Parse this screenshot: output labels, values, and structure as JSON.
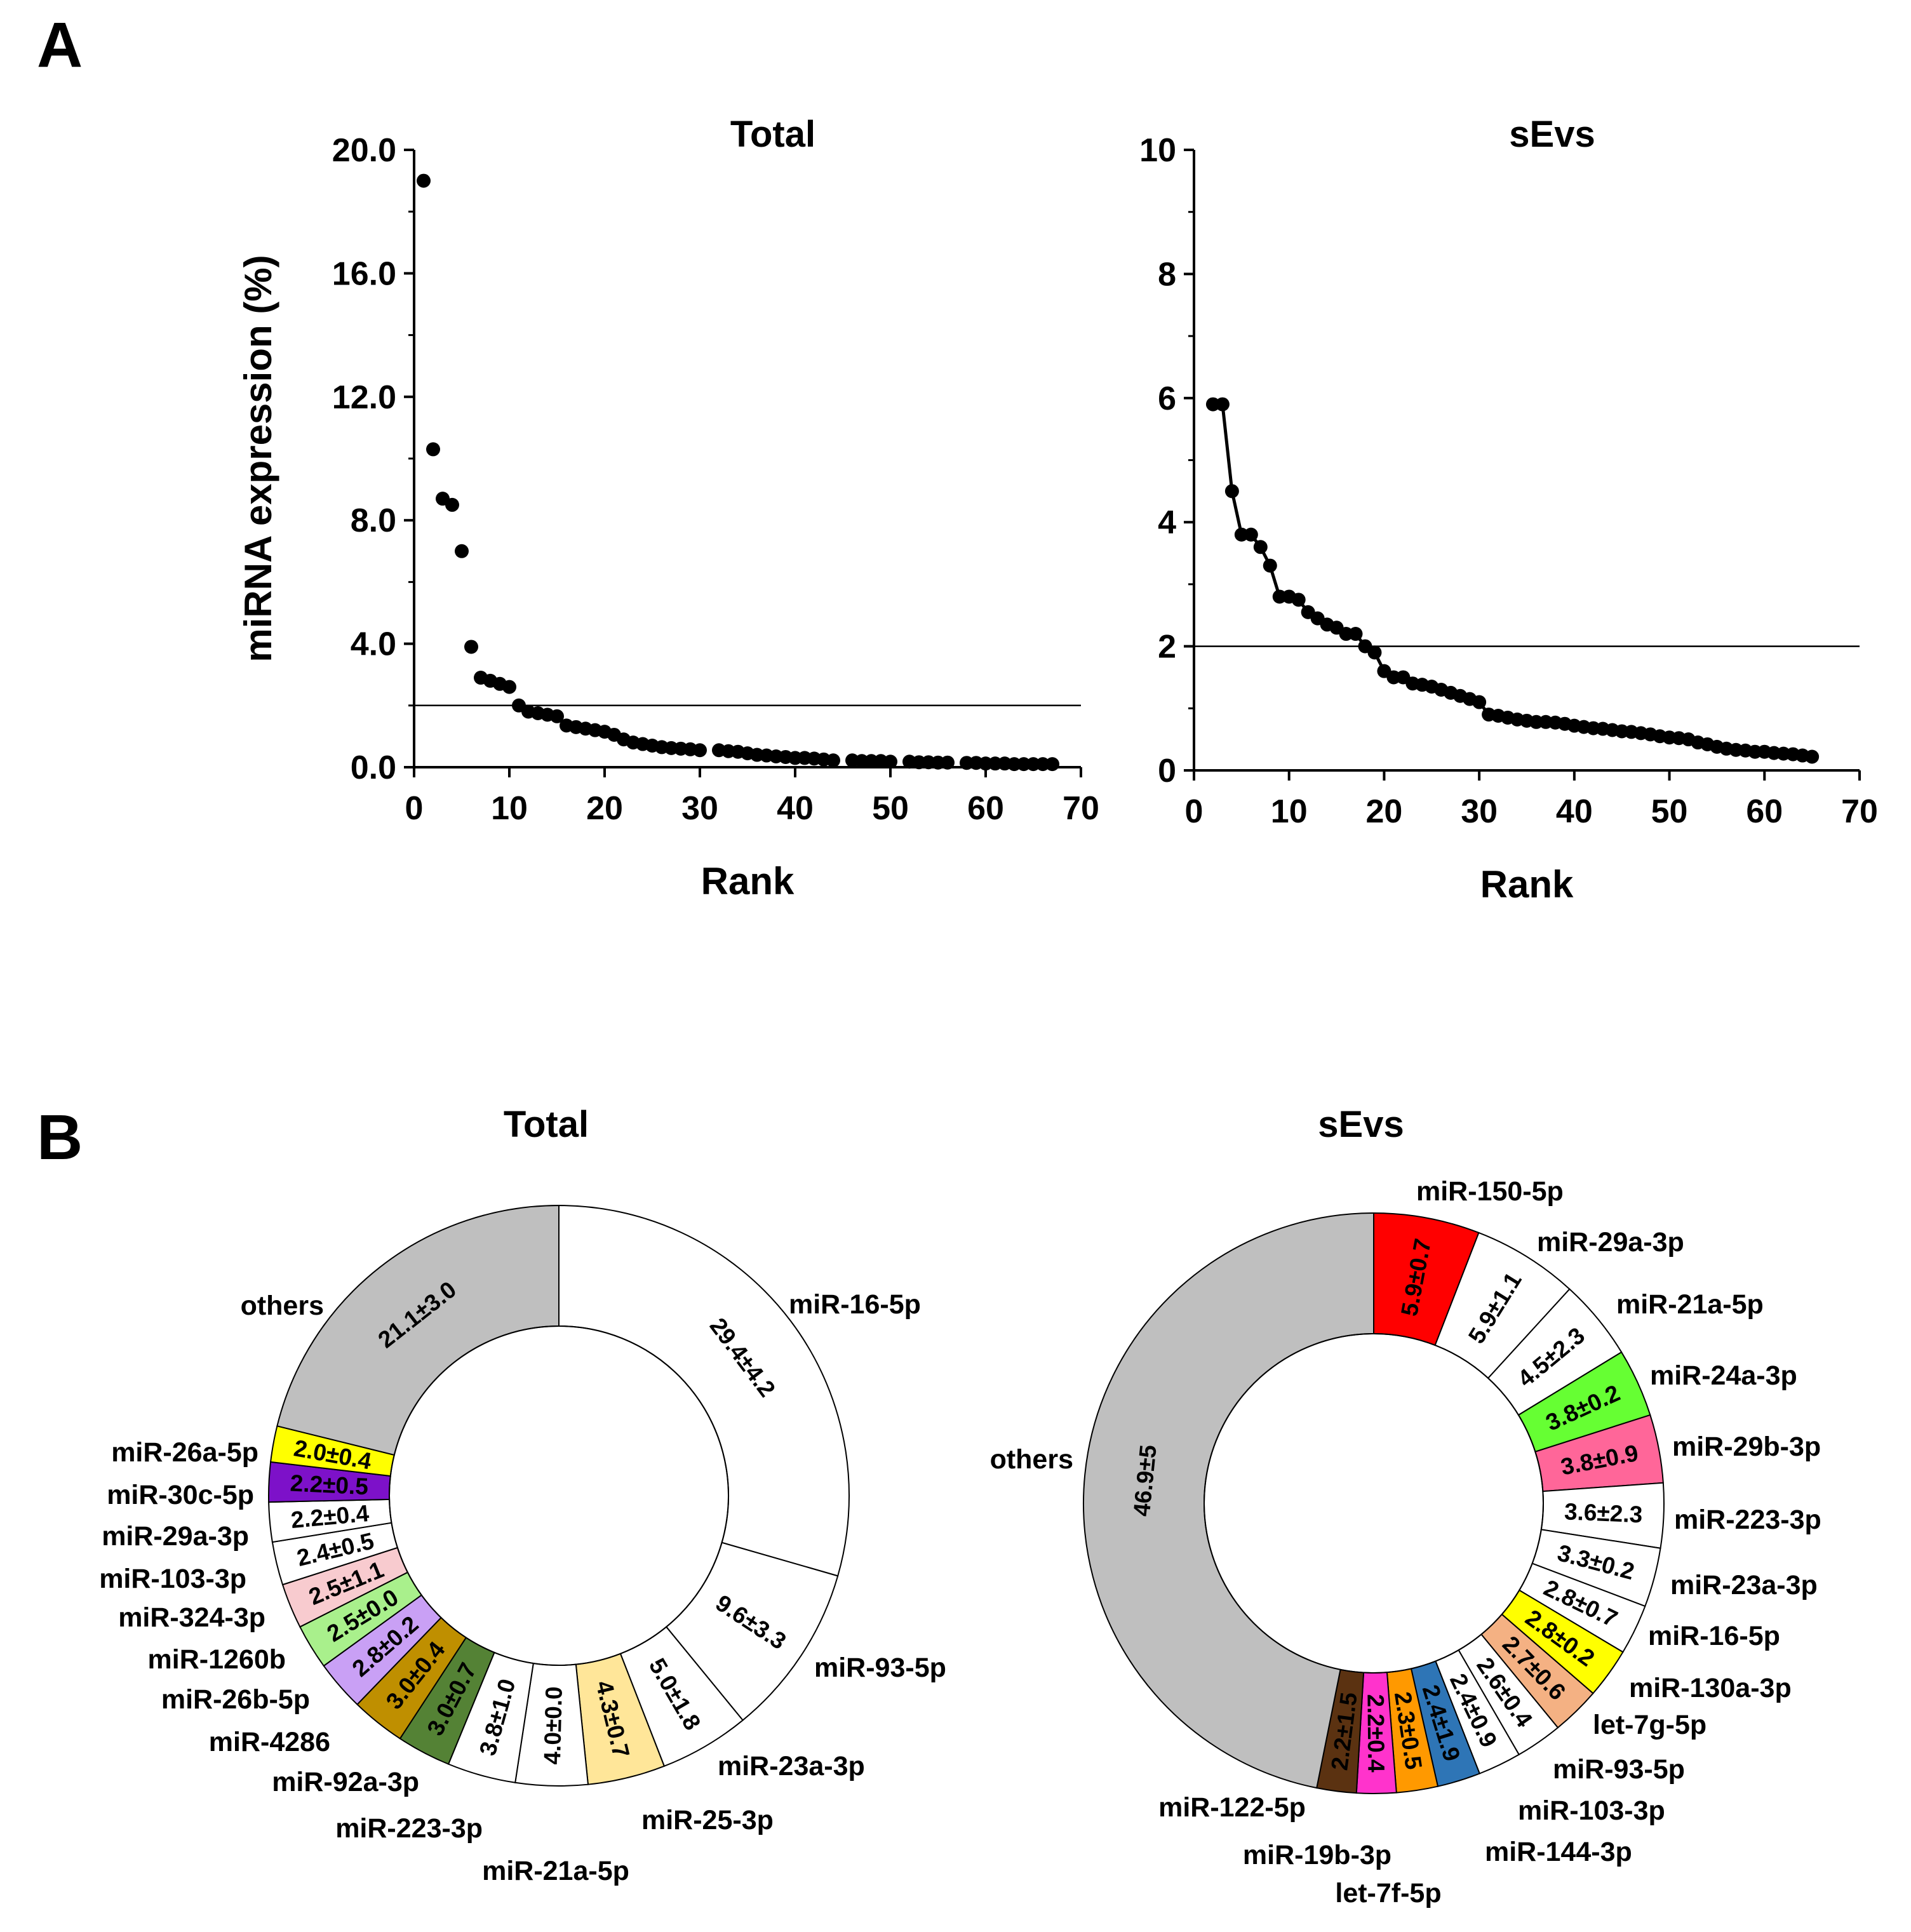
{
  "figure": {
    "panel_a_label": "A",
    "panel_b_label": "B"
  },
  "chart_data": [
    {
      "type": "scatter",
      "title": "Total",
      "xlabel": "Rank",
      "ylabel": "miRNA expression (%)",
      "xlim": [
        0,
        70
      ],
      "ylim": [
        0,
        20
      ],
      "xticks": [
        "0",
        "10",
        "20",
        "30",
        "40",
        "50",
        "60",
        "70"
      ],
      "yticks": [
        "0.0",
        "4.0",
        "8.0",
        "12.0",
        "16.0",
        "20.0"
      ],
      "threshold": 2.0,
      "connected": false,
      "x": [
        1,
        2,
        3,
        4,
        5,
        6,
        7,
        8,
        9,
        10,
        11,
        12,
        13,
        14,
        15,
        16,
        17,
        18,
        19,
        20,
        21,
        22,
        23,
        24,
        25,
        26,
        27,
        28,
        29,
        30,
        32,
        33,
        34,
        35,
        36,
        37,
        38,
        39,
        40,
        41,
        42,
        43,
        44,
        46,
        47,
        48,
        49,
        50,
        52,
        53,
        54,
        55,
        56,
        58,
        59,
        60,
        61,
        62,
        63,
        64,
        65,
        66,
        67
      ],
      "y": [
        19.0,
        10.3,
        8.7,
        8.5,
        7.0,
        3.9,
        2.9,
        2.8,
        2.7,
        2.6,
        2.0,
        1.8,
        1.75,
        1.7,
        1.65,
        1.35,
        1.3,
        1.25,
        1.2,
        1.15,
        1.05,
        0.9,
        0.8,
        0.75,
        0.7,
        0.65,
        0.62,
        0.6,
        0.58,
        0.55,
        0.55,
        0.52,
        0.5,
        0.45,
        0.4,
        0.38,
        0.35,
        0.33,
        0.3,
        0.3,
        0.28,
        0.25,
        0.22,
        0.22,
        0.2,
        0.2,
        0.2,
        0.18,
        0.18,
        0.16,
        0.16,
        0.15,
        0.15,
        0.14,
        0.14,
        0.12,
        0.12,
        0.12,
        0.1,
        0.1,
        0.1,
        0.1,
        0.1
      ]
    },
    {
      "type": "line",
      "title": "sEvs",
      "xlabel": "Rank",
      "ylabel": "",
      "xlim": [
        0,
        70
      ],
      "ylim": [
        0,
        10
      ],
      "xticks": [
        "0",
        "10",
        "20",
        "30",
        "40",
        "50",
        "60",
        "70"
      ],
      "yticks": [
        "0",
        "2",
        "4",
        "6",
        "8",
        "10"
      ],
      "threshold": 2.0,
      "connected": true,
      "x": [
        2,
        3,
        4,
        5,
        6,
        7,
        8,
        9,
        10,
        11,
        12,
        13,
        14,
        15,
        16,
        17,
        18,
        19,
        20,
        21,
        22,
        23,
        24,
        25,
        26,
        27,
        28,
        29,
        30,
        31,
        32,
        33,
        34,
        35,
        36,
        37,
        38,
        39,
        40,
        41,
        42,
        43,
        44,
        45,
        46,
        47,
        48,
        49,
        50,
        51,
        52,
        53,
        54,
        55,
        56,
        57,
        58,
        59,
        60,
        61,
        62,
        63,
        64,
        65
      ],
      "y": [
        5.9,
        5.9,
        4.5,
        3.8,
        3.8,
        3.6,
        3.3,
        2.8,
        2.8,
        2.75,
        2.55,
        2.45,
        2.35,
        2.3,
        2.2,
        2.2,
        2.0,
        1.9,
        1.6,
        1.5,
        1.5,
        1.4,
        1.38,
        1.35,
        1.3,
        1.25,
        1.2,
        1.15,
        1.1,
        0.9,
        0.88,
        0.85,
        0.82,
        0.8,
        0.78,
        0.78,
        0.77,
        0.75,
        0.72,
        0.7,
        0.68,
        0.67,
        0.65,
        0.63,
        0.62,
        0.6,
        0.58,
        0.55,
        0.53,
        0.52,
        0.5,
        0.45,
        0.42,
        0.38,
        0.35,
        0.33,
        0.32,
        0.3,
        0.3,
        0.28,
        0.27,
        0.26,
        0.24,
        0.22
      ]
    },
    {
      "type": "pie",
      "donut": true,
      "title": "Total",
      "start_angle_deg": 0,
      "slices": [
        {
          "label": "miR-16-5p",
          "value": 29.4,
          "text": "29.4±4.2",
          "color": "#ffffff"
        },
        {
          "label": "miR-93-5p",
          "value": 9.6,
          "text": "9.6±3.3",
          "color": "#ffffff"
        },
        {
          "label": "miR-23a-3p",
          "value": 5.0,
          "text": "5.0±1.8",
          "color": "#ffffff"
        },
        {
          "label": "miR-25-3p",
          "value": 4.3,
          "text": "4.3±0.7",
          "color": "#ffe699"
        },
        {
          "label": "miR-21a-5p",
          "value": 4.0,
          "text": "4.0±0.0",
          "color": "#ffffff"
        },
        {
          "label": "miR-223-3p",
          "value": 3.8,
          "text": "3.8±1.0",
          "color": "#ffffff"
        },
        {
          "label": "miR-92a-3p",
          "value": 3.0,
          "text": "3.0±0.7",
          "color": "#548235"
        },
        {
          "label": "miR-4286",
          "value": 3.0,
          "text": "3.0±0.4",
          "color": "#bf8f00"
        },
        {
          "label": "miR-26b-5p",
          "value": 2.8,
          "text": "2.8±0.2",
          "color": "#c9a0f5"
        },
        {
          "label": "miR-1260b",
          "value": 2.5,
          "text": "2.5±0.0",
          "color": "#a9f08c"
        },
        {
          "label": "miR-324-3p",
          "value": 2.5,
          "text": "2.5±1.1",
          "color": "#f8cbcf"
        },
        {
          "label": "miR-103-3p",
          "value": 2.4,
          "text": "2.4±0.5",
          "color": "#ffffff"
        },
        {
          "label": "miR-29a-3p",
          "value": 2.2,
          "text": "2.2±0.4",
          "color": "#ffffff"
        },
        {
          "label": "miR-30c-5p",
          "value": 2.2,
          "text": "2.2±0.5",
          "color": "#7d11c9"
        },
        {
          "label": "miR-26a-5p",
          "value": 2.0,
          "text": "2.0±0.4",
          "color": "#ffff00"
        },
        {
          "label": "others",
          "value": 21.1,
          "text": "21.1±3.0",
          "color": "#bfbfbf"
        }
      ]
    },
    {
      "type": "pie",
      "donut": true,
      "title": "sEvs",
      "start_angle_deg": 0,
      "slices": [
        {
          "label": "miR-150-5p",
          "value": 5.9,
          "text": "5.9±0.7",
          "color": "#ff0000"
        },
        {
          "label": "miR-29a-3p",
          "value": 5.9,
          "text": "5.9±1.1",
          "color": "#ffffff"
        },
        {
          "label": "miR-21a-5p",
          "value": 4.5,
          "text": "4.5±2.3",
          "color": "#ffffff"
        },
        {
          "label": "miR-24a-3p",
          "value": 3.8,
          "text": "3.8±0.2",
          "color": "#66ff33"
        },
        {
          "label": "miR-29b-3p",
          "value": 3.8,
          "text": "3.8±0.9",
          "color": "#ff6699"
        },
        {
          "label": "miR-223-3p",
          "value": 3.6,
          "text": "3.6±2.3",
          "color": "#ffffff"
        },
        {
          "label": "miR-23a-3p",
          "value": 3.3,
          "text": "3.3±0.2",
          "color": "#ffffff"
        },
        {
          "label": "miR-16-5p",
          "value": 2.8,
          "text": "2.8±0.7",
          "color": "#ffffff"
        },
        {
          "label": "miR-130a-3p",
          "value": 2.8,
          "text": "2.8±0.2",
          "color": "#ffff00"
        },
        {
          "label": "let-7g-5p",
          "value": 2.7,
          "text": "2.7±0.6",
          "color": "#f4b183"
        },
        {
          "label": "miR-93-5p",
          "value": 2.6,
          "text": "2.6±0.4",
          "color": "#ffffff"
        },
        {
          "label": "miR-103-3p",
          "value": 2.4,
          "text": "2.4±0.9",
          "color": "#ffffff"
        },
        {
          "label": "miR-144-3p",
          "value": 2.4,
          "text": "2.4±1.9",
          "color": "#2e75b6"
        },
        {
          "label": "let-7f-5p",
          "value": 2.3,
          "text": "2.3±0.5",
          "color": "#ff9900"
        },
        {
          "label": "miR-19b-3p",
          "value": 2.2,
          "text": "2.2±0.4",
          "color": "#ff33cc"
        },
        {
          "label": "miR-122-5p",
          "value": 2.2,
          "text": "2.2±1.5",
          "color": "#5b3211"
        },
        {
          "label": "others",
          "value": 46.9,
          "text": "46.9±5",
          "color": "#bfbfbf"
        }
      ]
    }
  ]
}
